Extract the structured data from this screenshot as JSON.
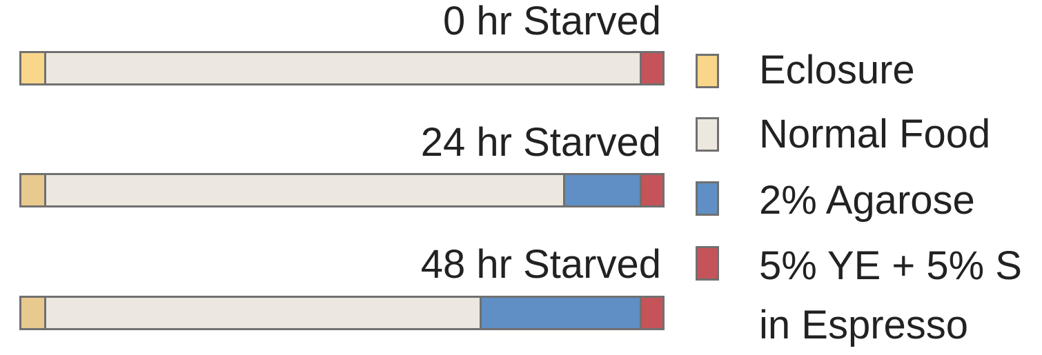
{
  "chart_data": {
    "type": "bar",
    "orientation": "horizontal",
    "stacked": true,
    "categories": [
      "0 hr Starved",
      "24 hr Starved",
      "48 hr Starved"
    ],
    "series": [
      {
        "name": "Eclosure",
        "color": "#f8d68a",
        "values": [
          0.035,
          0.035,
          0.035
        ]
      },
      {
        "name": "Normal Food",
        "color": "#ece7df",
        "values": [
          0.93,
          0.81,
          0.68
        ]
      },
      {
        "name": "2% Agarose",
        "color": "#5f8fc4",
        "values": [
          0.0,
          0.12,
          0.25
        ]
      },
      {
        "name": "5% YE + 5% S in Espresso",
        "color": "#c4545a",
        "values": [
          0.035,
          0.035,
          0.035
        ]
      }
    ],
    "legend_position": "right"
  },
  "legend": {
    "items": [
      {
        "label": "Eclosure",
        "color": "#f8d68a"
      },
      {
        "label": "Normal Food",
        "color": "#ece7df"
      },
      {
        "label": "2% Agarose",
        "color": "#5f8fc4"
      },
      {
        "label": "5% YE + 5% S in Espresso",
        "color": "#c4545a"
      }
    ]
  },
  "bars": [
    {
      "title": "0 hr Starved",
      "segments": [
        {
          "key": "eclosure",
          "color": "#f8d68a"
        },
        {
          "key": "normal-food",
          "color": "#ece7df"
        },
        {
          "key": "agarose",
          "color": "#5f8fc4"
        },
        {
          "key": "ye-s-espresso",
          "color": "#c4545a"
        }
      ]
    },
    {
      "title": "24 hr Starved",
      "segments": [
        {
          "key": "eclosure",
          "color": "#e8c98e"
        },
        {
          "key": "normal-food",
          "color": "#ece7df"
        },
        {
          "key": "agarose",
          "color": "#5f8fc4"
        },
        {
          "key": "ye-s-espresso",
          "color": "#c4545a"
        }
      ]
    },
    {
      "title": "48 hr Starved",
      "segments": [
        {
          "key": "eclosure",
          "color": "#e8c98e"
        },
        {
          "key": "normal-food",
          "color": "#ece7df"
        },
        {
          "key": "agarose",
          "color": "#5f8fc4"
        },
        {
          "key": "ye-s-espresso",
          "color": "#c4545a"
        }
      ]
    }
  ]
}
